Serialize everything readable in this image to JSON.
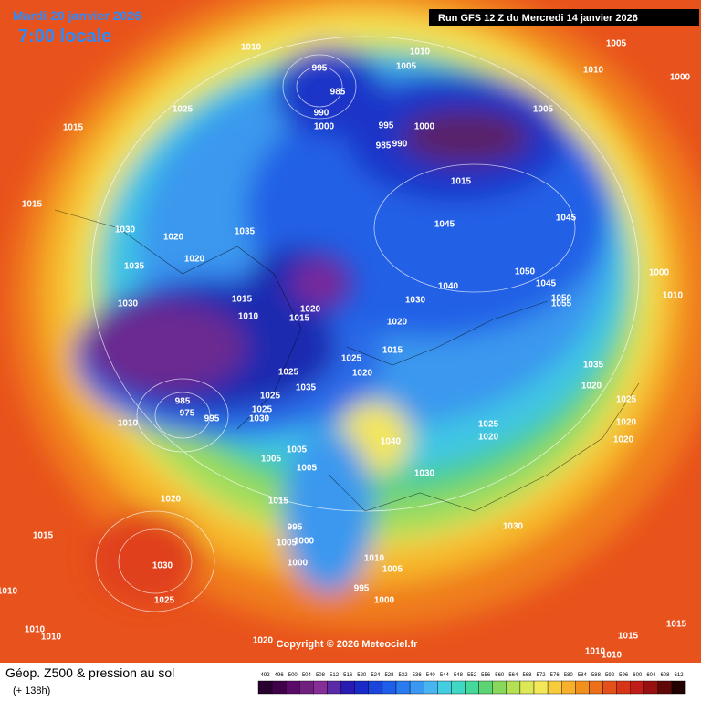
{
  "header": {
    "date": "Mardi 20 janvier 2026",
    "time": "7:00 locale",
    "run": "Run GFS 12 Z du Mercredi 14 janvier 2026"
  },
  "isobar_labels": [
    1015,
    1025,
    1010,
    995,
    985,
    990,
    1000,
    1005,
    1010,
    1005,
    1010,
    1000,
    1005,
    995,
    1000,
    985,
    990,
    1015,
    1045,
    1045,
    1015,
    1030,
    1020,
    1035,
    1035,
    1020,
    1030,
    1015,
    1010,
    1020,
    1015,
    1030,
    1040,
    1050,
    1045,
    1050,
    1055,
    1000,
    1010,
    1020,
    1015,
    1025,
    1020,
    1025,
    1035,
    1025,
    1025,
    1030,
    985,
    975,
    995,
    1010,
    1035,
    1020,
    1025,
    1020,
    1020,
    1025,
    1020,
    1040,
    1005,
    1005,
    1005,
    1030,
    1020,
    1015,
    1015,
    995,
    1005,
    1000,
    1030,
    1000,
    1030,
    1010,
    1005,
    995,
    1000,
    1025,
    1010,
    1010,
    1010,
    1020,
    1015,
    1015,
    1010,
    1010
  ],
  "copyright": "Copyright © 2026 Meteociel.fr",
  "footer": {
    "title": "Géop. Z500 & pression au sol",
    "lead": "(+ 138h)"
  },
  "scale": {
    "labels": [
      492,
      496,
      500,
      504,
      508,
      512,
      516,
      520,
      524,
      528,
      532,
      536,
      540,
      544,
      548,
      552,
      556,
      560,
      564,
      568,
      572,
      576,
      580,
      584,
      588,
      592,
      596,
      600,
      604,
      608,
      612
    ]
  }
}
